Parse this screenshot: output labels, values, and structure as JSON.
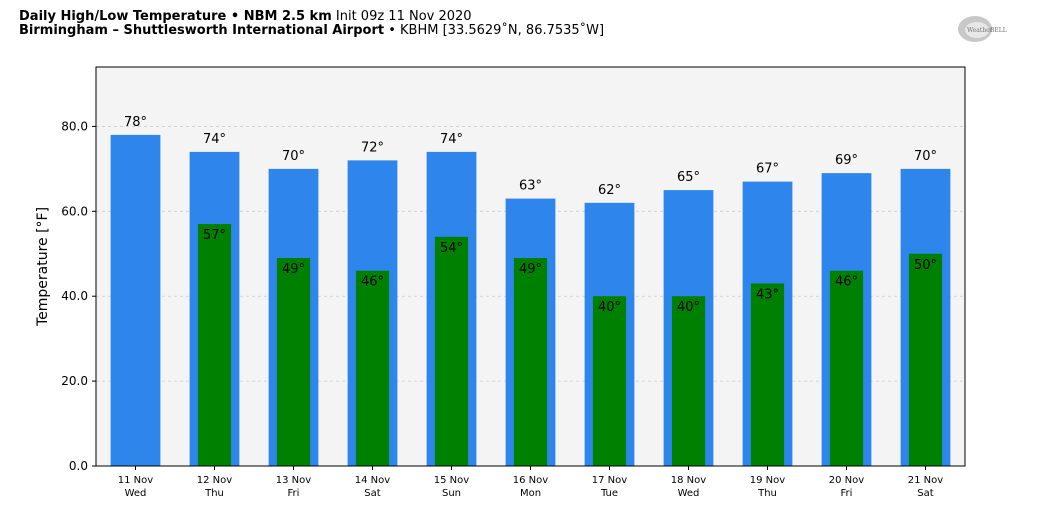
{
  "header": {
    "line1_bold": "Daily High/Low Temperature • NBM 2.5 km",
    "line1_normal": "Init 09z 11 Nov 2020",
    "line2_bold": "Birmingham – Shuttlesworth International Airport",
    "line2_normal": "• KBHM [33.5629˚N, 86.7535˚W]"
  },
  "logo": {
    "text1": "Weather",
    "text2": "BELL"
  },
  "colors": {
    "high_bar": "#2e86ec",
    "low_bar": "#008000",
    "plot_background": "#f4f4f4",
    "grid": "#cccccc"
  },
  "chart_data": {
    "type": "bar",
    "ylabel": "Temperature [°F]",
    "ylim": [
      0,
      94
    ],
    "yticks": [
      "0.0",
      "20.0",
      "40.0",
      "60.0",
      "80.0"
    ],
    "ytick_values": [
      0,
      20,
      40,
      60,
      80
    ],
    "grid": "horizontal dashed",
    "categories": [
      "11 Nov",
      "12 Nov",
      "13 Nov",
      "14 Nov",
      "15 Nov",
      "16 Nov",
      "17 Nov",
      "18 Nov",
      "19 Nov",
      "20 Nov",
      "21 Nov"
    ],
    "weekdays": [
      "Wed",
      "Thu",
      "Fri",
      "Sat",
      "Sun",
      "Mon",
      "Tue",
      "Wed",
      "Thu",
      "Fri",
      "Sat"
    ],
    "series": [
      {
        "key": "high",
        "values": [
          78,
          74,
          70,
          72,
          74,
          63,
          62,
          65,
          67,
          69,
          70
        ],
        "labels": [
          "78°",
          "74°",
          "70°",
          "72°",
          "74°",
          "63°",
          "62°",
          "65°",
          "67°",
          "69°",
          "70°"
        ]
      },
      {
        "key": "low",
        "values": [
          null,
          57,
          49,
          46,
          54,
          49,
          40,
          40,
          43,
          46,
          50
        ],
        "labels": [
          "",
          "57°",
          "49°",
          "46°",
          "54°",
          "49°",
          "40°",
          "40°",
          "43°",
          "46°",
          "50°"
        ]
      }
    ]
  }
}
